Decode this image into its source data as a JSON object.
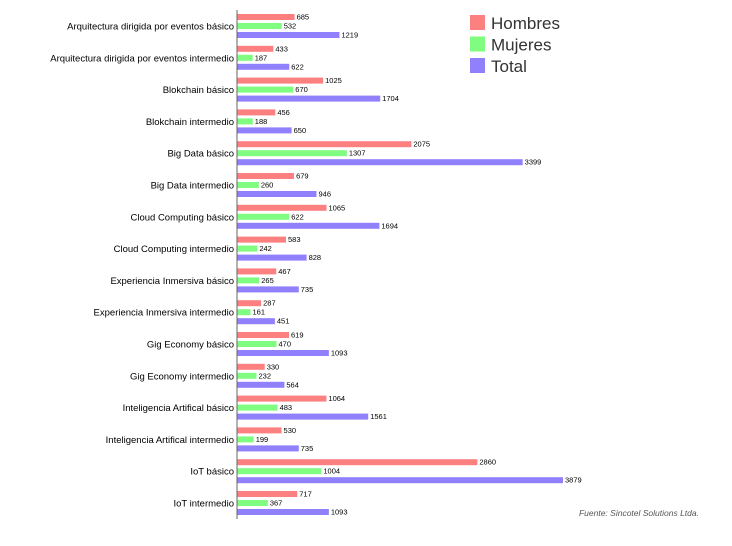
{
  "chart_data": {
    "type": "bar",
    "orientation": "horizontal",
    "categories": [
      "Arquitectura dirigida por eventos básico",
      "Arquitectura dirigida por eventos intermedio",
      "Blokchain básico",
      "Blokchain intermedio",
      "Big Data básico",
      "Big Data intermedio",
      "Cloud Computing básico",
      "Cloud Computing intermedio",
      "Experiencia Inmersiva básico",
      "Experiencia Inmersiva intermedio",
      "Gig Economy básico",
      "Gig Economy intermedio",
      "Inteligencia Artifical básico",
      "Inteligencia Artifical intermedio",
      "IoT básico",
      "IoT intermedio"
    ],
    "series": [
      {
        "name": "Hombres",
        "color": "#fc8080",
        "values": [
          685,
          433,
          1025,
          456,
          2075,
          679,
          1065,
          583,
          467,
          287,
          619,
          330,
          1064,
          530,
          2860,
          717
        ]
      },
      {
        "name": "Mujeres",
        "color": "#80fc80",
        "values": [
          532,
          187,
          670,
          188,
          1307,
          260,
          622,
          242,
          265,
          161,
          470,
          232,
          483,
          199,
          1004,
          367
        ]
      },
      {
        "name": "Total",
        "color": "#9080fc",
        "values": [
          1219,
          622,
          1704,
          650,
          3399,
          946,
          1694,
          828,
          735,
          451,
          1093,
          564,
          1561,
          735,
          3879,
          1093
        ]
      }
    ],
    "xlim": [
      0,
      3879
    ],
    "grid": false,
    "legend": "top-right",
    "source": "Fuente: Sincotel Solutions Ltda."
  }
}
